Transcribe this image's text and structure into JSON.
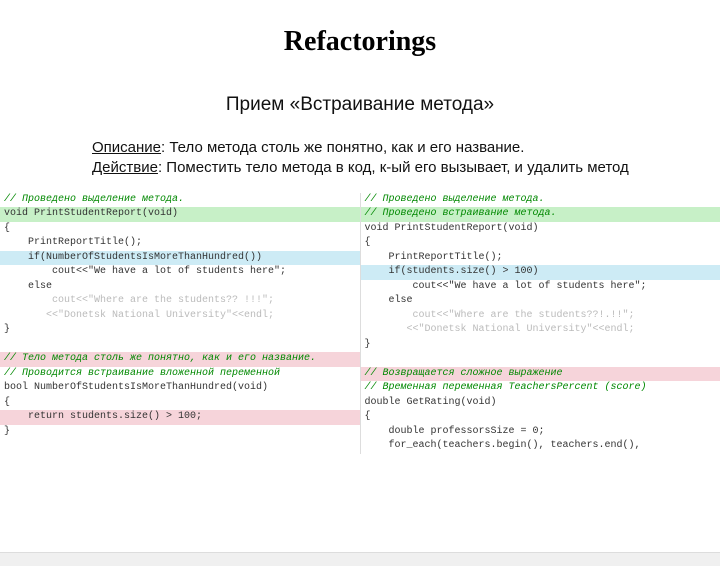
{
  "title": "Refactorings",
  "subtitle": "Прием «Встраивание метода»",
  "desc_label": "Описание",
  "desc_text": ": Тело метода столь же понятно, как и его название.",
  "action_label": "Действие",
  "action_text": ": Поместить тело метода в код, к-ый его вызывает, и удалить метод",
  "colors": {
    "green": "#c7f0c7",
    "cyan": "#cdebf5",
    "pink": "#f6d4da",
    "comment": "#008800"
  },
  "left": {
    "l1": "// Проведено выделение метода.",
    "l2": "void PrintStudentReport(void)",
    "l3": "{",
    "l4": "    PrintReportTitle();",
    "l5": "    if(NumberOfStudentsIsMoreThanHundred())",
    "l6": "        cout<<\"We have a lot of students here\";",
    "l7": "    else",
    "l8": "        cout<<\"Where are the students?? !!!\";",
    "l9": "",
    "l10": "       <<\"Donetsk National University\"<<endl;",
    "l11": "}",
    "l12": "",
    "l13": "// Тело метода столь же понятно, как и его название.",
    "l14": "// Проводится встраивание вложенной переменной",
    "l15": "bool NumberOfStudentsIsMoreThanHundred(void)",
    "l16": "{",
    "l17": "    return students.size() > 100;",
    "l18": "}"
  },
  "right": {
    "l1": "// Проведено выделение метода.",
    "l2": "// Проведено встраивание метода.",
    "l3": "void PrintStudentReport(void)",
    "l4": "{",
    "l5": "    PrintReportTitle();",
    "l6": "    if(students.size() > 100)",
    "l7": "        cout<<\"We have a lot of students here\";",
    "l8": "    else",
    "l9": "        cout<<\"Where are the students??!.!!\";",
    "l10": "",
    "l11": "       <<\"Donetsk National University\"<<endl;",
    "l12": "}",
    "l13": "",
    "l14": "// Возвращается сложное выражение",
    "l15": "// Временная переменная TeachersPercent (score)",
    "l16": "double GetRating(void)",
    "l17": "{",
    "l18": "    double professorsSize = 0;",
    "l19": "    for_each(teachers.begin(), teachers.end(),"
  }
}
